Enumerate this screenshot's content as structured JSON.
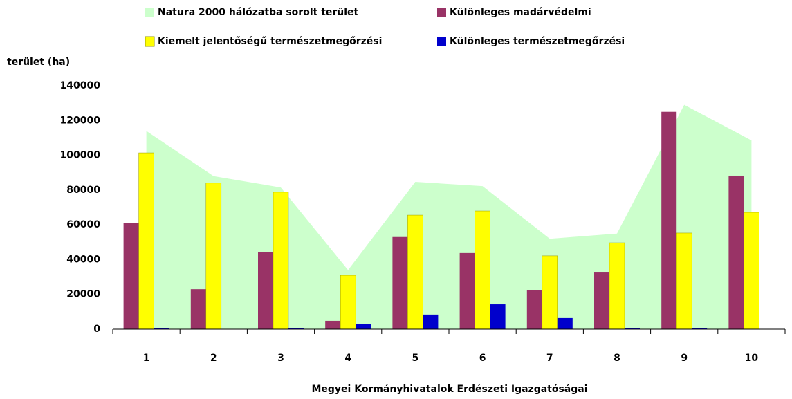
{
  "chart_data": {
    "type": "bar",
    "ylabel": "terület (ha)",
    "xlabel": "Megyei Kormányhivatalok Erdészeti Igazgatóságai",
    "categories": [
      "1",
      "2",
      "3",
      "4",
      "5",
      "6",
      "7",
      "8",
      "9",
      "10"
    ],
    "series": [
      {
        "name": "Natura 2000 hálózatba sorolt terület",
        "type": "area",
        "color": "#ccffcc",
        "values": [
          114000,
          88000,
          81500,
          34000,
          84700,
          82300,
          52000,
          55000,
          129000,
          108600
        ]
      },
      {
        "name": "Különleges madárvédelmi",
        "type": "bar",
        "color": "#993366",
        "values": [
          61000,
          23000,
          44500,
          4800,
          53000,
          43800,
          22300,
          32600,
          125000,
          88300
        ]
      },
      {
        "name": "Kiemelt jelentőségű természetmegőrzési",
        "type": "bar",
        "color": "#ffff00",
        "values": [
          101400,
          84000,
          78800,
          31000,
          65600,
          68000,
          42200,
          49700,
          55300,
          67200
        ]
      },
      {
        "name": "Különleges természetmegőrzési",
        "type": "bar",
        "color": "#0000cc",
        "values": [
          500,
          0,
          500,
          2800,
          8400,
          14300,
          6400,
          500,
          500,
          0
        ]
      }
    ],
    "ylim": [
      0,
      140000
    ],
    "yticks": [
      0,
      20000,
      40000,
      60000,
      80000,
      100000,
      120000,
      140000
    ],
    "legend": "top"
  }
}
